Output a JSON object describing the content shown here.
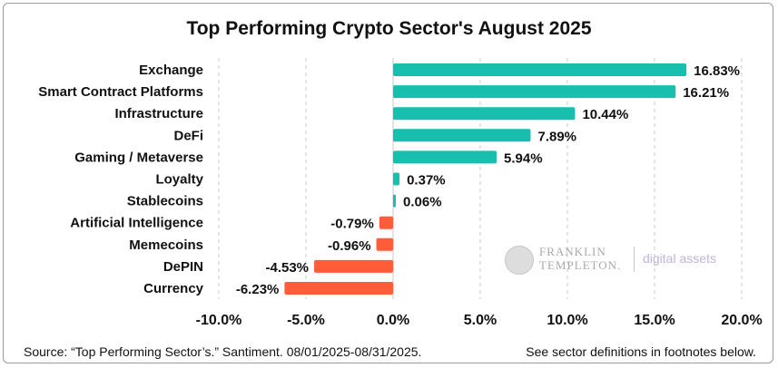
{
  "title": "Top Performing Crypto Sector's August 2025",
  "footer": {
    "source": "Source: “Top Performing Sector’s.” Santiment. 08/01/2025-08/31/2025.",
    "note": "See sector definitions in footnotes below."
  },
  "logo": {
    "line1": "FRANKLIN",
    "line2": "TEMPLETON.",
    "tagline": "digital assets",
    "icon": "franklin-portrait-icon"
  },
  "colors": {
    "positive": "#18bfae",
    "negative": "#ff5c3a",
    "grid": "#c8c8c8"
  },
  "chart_data": {
    "type": "bar",
    "orientation": "horizontal",
    "categories": [
      "Exchange",
      "Smart Contract Platforms",
      "Infrastructure",
      "DeFi",
      "Gaming / Metaverse",
      "Loyalty",
      "Stablecoins",
      "Artificial Intelligence",
      "Memecoins",
      "DePIN",
      "Currency"
    ],
    "values": [
      16.83,
      16.21,
      10.44,
      7.89,
      5.94,
      0.37,
      0.06,
      -0.79,
      -0.96,
      -4.53,
      -6.23
    ],
    "value_labels": [
      "16.83%",
      "16.21%",
      "10.44%",
      "7.89%",
      "5.94%",
      "0.37%",
      "0.06%",
      "-0.79%",
      "-0.96%",
      "-4.53%",
      "-6.23%"
    ],
    "xlim": [
      -10,
      20
    ],
    "xticks": [
      -10,
      -5,
      0,
      5,
      10,
      15,
      20
    ],
    "xtick_labels": [
      "-10.0%",
      "-5.0%",
      "0.0%",
      "5.0%",
      "10.0%",
      "15.0%",
      "20.0%"
    ],
    "grid": "vertical dashed"
  }
}
